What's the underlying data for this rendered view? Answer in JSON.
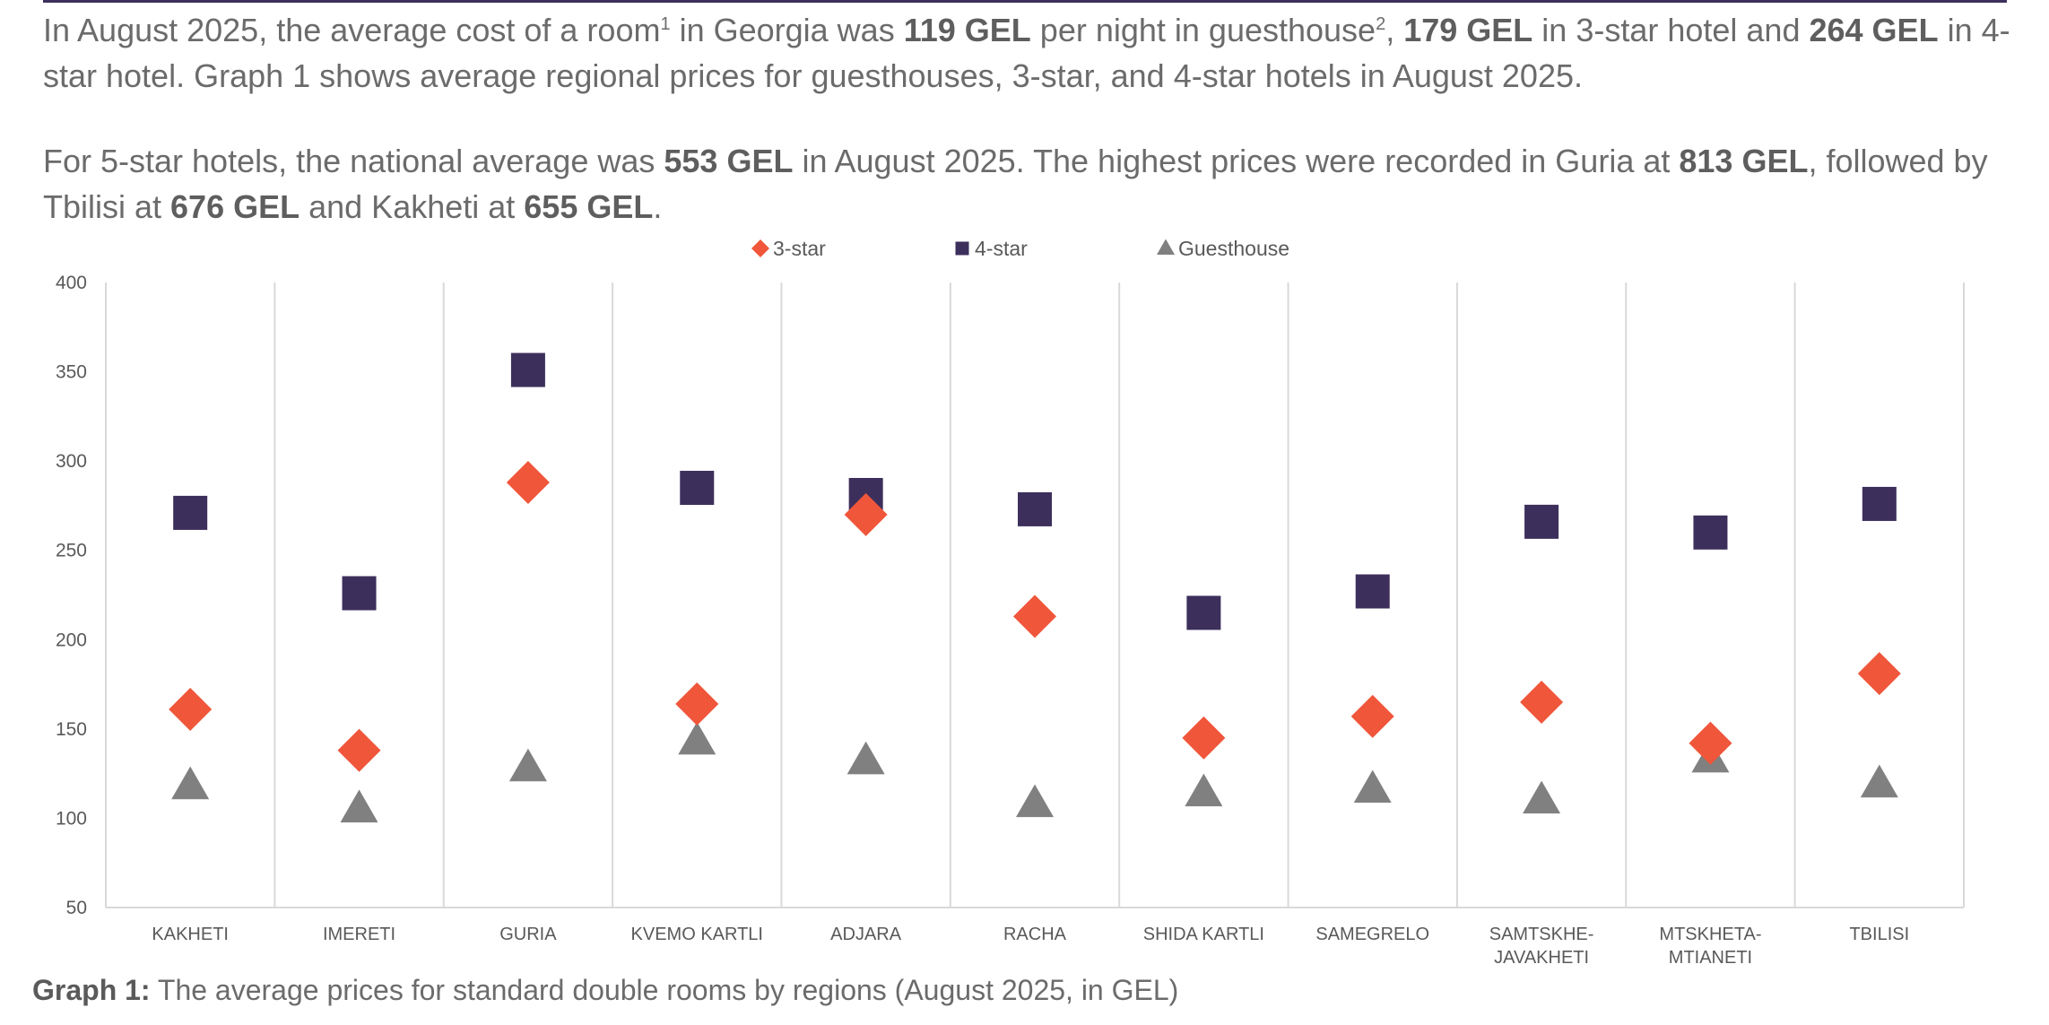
{
  "intro": {
    "p1": {
      "t1": "In August 2025, the average cost of a room",
      "sup1": "1",
      "t2": " in Georgia was ",
      "b1": "119 GEL",
      "t3": " per night in guesthouse",
      "sup2": "2",
      "t4": ", ",
      "b2": "179 GEL",
      "t5": " in 3-star hotel and ",
      "b3": "264 GEL",
      "t6": " in 4-star hotel. Graph 1 shows average regional prices for guesthouses, 3-star, and 4-star hotels in August 2025."
    },
    "p2": {
      "t1": "For 5-star hotels, the national average was ",
      "b1": "553 GEL",
      "t2": " in August 2025. The highest prices were recorded in Guria at ",
      "b2": "813 GEL",
      "t3": ", followed by Tbilisi at ",
      "b3": "676 GEL",
      "t4": " and Kakheti at ",
      "b4": "655 GEL",
      "t5": "."
    }
  },
  "caption": {
    "label": "Graph 1:",
    "text": " The average prices for standard double rooms by regions (August 2025, in GEL)"
  },
  "colors": {
    "three_star": "#f0563a",
    "four_star": "#3d2f5c",
    "guesthouse": "#808080",
    "grid": "#d9d9d9",
    "axis_text": "#595959"
  },
  "chart_data": {
    "type": "scatter",
    "title": "",
    "xlabel": "",
    "ylabel": "",
    "ylim": [
      50,
      400
    ],
    "yticks": [
      50,
      100,
      150,
      200,
      250,
      300,
      350,
      400
    ],
    "categories": [
      [
        "KAKHETI"
      ],
      [
        "IMERETI"
      ],
      [
        "GURIA"
      ],
      [
        "KVEMO KARTLI"
      ],
      [
        "ADJARA"
      ],
      [
        "RACHA"
      ],
      [
        "SHIDA KARTLI"
      ],
      [
        "SAMEGRELO"
      ],
      [
        "SAMTSKHE-",
        "JAVAKHETI"
      ],
      [
        "MTSKHETA-",
        "MTIANETI"
      ],
      [
        "TBILISI"
      ]
    ],
    "legend_position": "top-center",
    "series": [
      {
        "name": "3-star",
        "marker": "diamond",
        "color": "#f0563a",
        "values": [
          161,
          138,
          288,
          164,
          270,
          213,
          145,
          157,
          165,
          142,
          181
        ]
      },
      {
        "name": "4-star",
        "marker": "square",
        "color": "#3d2f5c",
        "values": [
          271,
          226,
          351,
          285,
          281,
          273,
          215,
          227,
          266,
          260,
          276
        ]
      },
      {
        "name": "Guesthouse",
        "marker": "triangle",
        "color": "#808080",
        "values": [
          118,
          105,
          128,
          143,
          132,
          108,
          114,
          116,
          110,
          133,
          119
        ]
      }
    ]
  }
}
